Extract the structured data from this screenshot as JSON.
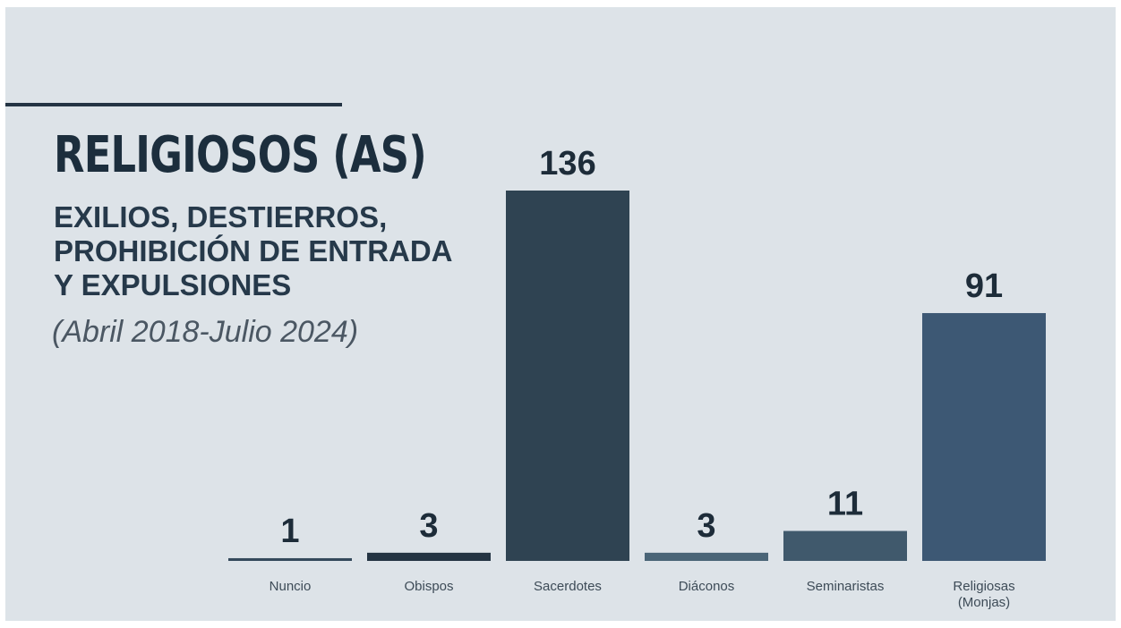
{
  "header": {
    "title": "RELIGIOSOS (AS)",
    "subtitle_lines": [
      "EXILIOS, DESTIERROS,",
      "PROHIBICIÓN DE ENTRADA",
      "Y EXPULSIONES"
    ],
    "period": "(Abril 2018-Julio 2024)"
  },
  "colors": {
    "background": "#dde3e8",
    "title": "#1c2e3d",
    "label": "#3d4b57"
  },
  "chart_data": {
    "type": "bar",
    "categories": [
      "Nuncio",
      "Obispos",
      "Sacerdotes",
      "Diáconos",
      "Seminaristas",
      "Religiosas (Monjas)"
    ],
    "values": [
      1,
      3,
      136,
      3,
      11,
      91
    ],
    "data_labels": [
      "1",
      "3",
      "136",
      "3",
      "11",
      "91"
    ],
    "bar_colors": [
      "#34495b",
      "#243443",
      "#2f4352",
      "#4a6577",
      "#40596c",
      "#3d5874"
    ],
    "title": "RELIGIOSOS (AS)",
    "xlabel": "",
    "ylabel": "",
    "ylim": [
      0,
      136
    ],
    "grid": false,
    "legend": "none"
  }
}
